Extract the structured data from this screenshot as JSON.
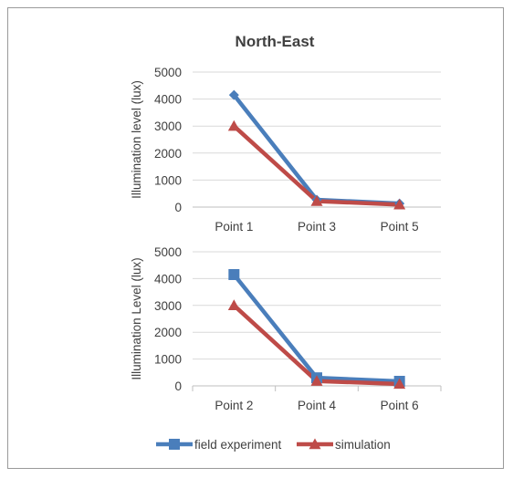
{
  "chart_data": {
    "type": "line",
    "title": "North-East",
    "colors": {
      "field experiment": "#4a7ebb",
      "simulation": "#be4b48"
    },
    "legend": {
      "placement": "bottom",
      "entries": [
        {
          "name": "field experiment",
          "marker": "square"
        },
        {
          "name": "simulation",
          "marker": "triangle"
        }
      ]
    },
    "panels": [
      {
        "ylabel": "Illumination level (lux)",
        "ylim": [
          0,
          5000
        ],
        "yticks": [
          "5000",
          "4000",
          "3000",
          "2000",
          "1000",
          "0"
        ],
        "grid": true,
        "categories": [
          "Point 1",
          "Point 3",
          "Point 5"
        ],
        "series": [
          {
            "name": "field experiment",
            "marker": "diamond",
            "values": [
              4150,
              270,
              130
            ]
          },
          {
            "name": "simulation",
            "marker": "triangle",
            "values": [
              3000,
              220,
              90
            ]
          }
        ]
      },
      {
        "ylabel": "Illumination Level (lux)",
        "ylim": [
          0,
          5000
        ],
        "yticks": [
          "5000",
          "4000",
          "3000",
          "2000",
          "1000",
          "0"
        ],
        "grid": true,
        "categories": [
          "Point 2",
          "Point 4",
          "Point 6"
        ],
        "series": [
          {
            "name": "field experiment",
            "marker": "square",
            "values": [
              4150,
              300,
              170
            ]
          },
          {
            "name": "simulation",
            "marker": "triangle",
            "values": [
              3000,
              180,
              70
            ]
          }
        ]
      }
    ]
  }
}
